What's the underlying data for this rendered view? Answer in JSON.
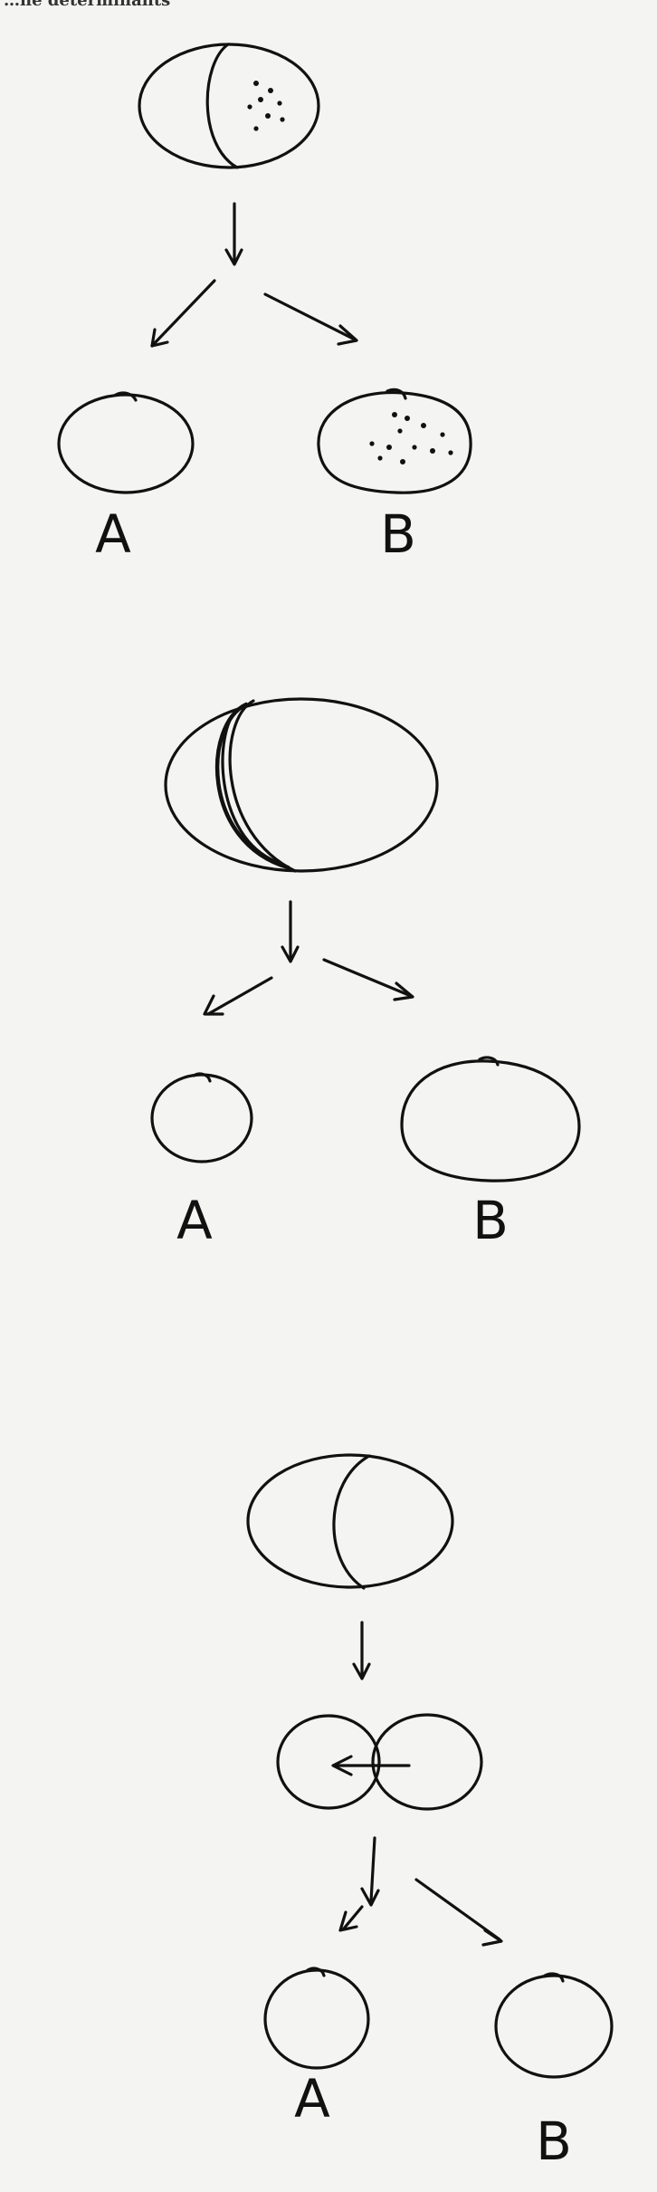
{
  "header": {
    "text": "…ne determinants"
  },
  "panels": [
    {
      "id": "panel-1",
      "labels": [
        "A",
        "B"
      ]
    },
    {
      "id": "panel-2",
      "labels": [
        "A",
        "B"
      ]
    },
    {
      "id": "panel-3",
      "labels": [
        "A",
        "B"
      ]
    }
  ]
}
